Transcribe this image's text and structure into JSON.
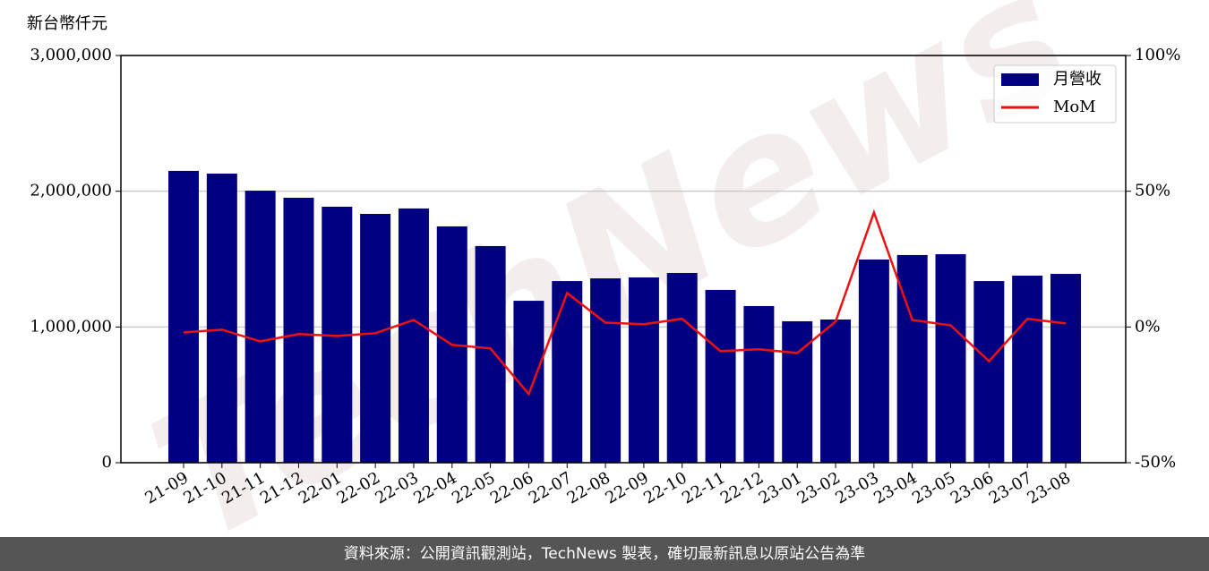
{
  "chart_data": {
    "type": "bar-line",
    "y_label": "新台幣仟元",
    "watermark": "TechNews",
    "categories": [
      "21-09",
      "21-10",
      "21-11",
      "21-12",
      "22-01",
      "22-02",
      "22-03",
      "22-04",
      "22-05",
      "22-06",
      "22-07",
      "22-08",
      "22-09",
      "22-10",
      "22-11",
      "22-12",
      "23-01",
      "23-02",
      "23-03",
      "23-04",
      "23-05",
      "23-06",
      "23-07",
      "23-08"
    ],
    "series": [
      {
        "name": "月營收",
        "type": "bar",
        "color": "#000080",
        "values": [
          2150000,
          2130000,
          2004000,
          1952000,
          1886000,
          1833000,
          1873000,
          1741000,
          1596000,
          1193000,
          1338000,
          1358000,
          1365000,
          1398000,
          1273000,
          1154000,
          1042000,
          1055000,
          1497000,
          1530000,
          1536000,
          1338000,
          1378000,
          1391000
        ]
      },
      {
        "name": "MoM",
        "type": "line",
        "axis": "y2",
        "color": "#ee1111",
        "values": [
          -2.0,
          -1.0,
          -5.3,
          -2.6,
          -3.3,
          -2.3,
          2.6,
          -6.6,
          -7.9,
          -24.7,
          12.5,
          1.6,
          1.0,
          3.0,
          -8.9,
          -8.2,
          -9.6,
          2.0,
          42.2,
          2.6,
          0.6,
          -12.6,
          3.0,
          1.3
        ]
      }
    ],
    "ylim": [
      0,
      3000000
    ],
    "yticks": [
      0,
      {
        "value": 1000000,
        "label": "1,000,000"
      },
      {
        "value": 2000000,
        "label": "2,000,000"
      },
      {
        "value": 3000000,
        "label": "3,000,000"
      }
    ],
    "y2lim": [
      -50,
      100
    ],
    "y2ticks": [
      {
        "value": -50,
        "label": "-50%"
      },
      {
        "value": 0,
        "label": "0%"
      },
      {
        "value": 50,
        "label": "50%"
      },
      {
        "value": 100,
        "label": "100%"
      }
    ],
    "grid": true,
    "legend": "upper right"
  },
  "footer": "資料來源：公開資訊觀測站，TechNews 製表，確切最新訊息以原站公告為準"
}
